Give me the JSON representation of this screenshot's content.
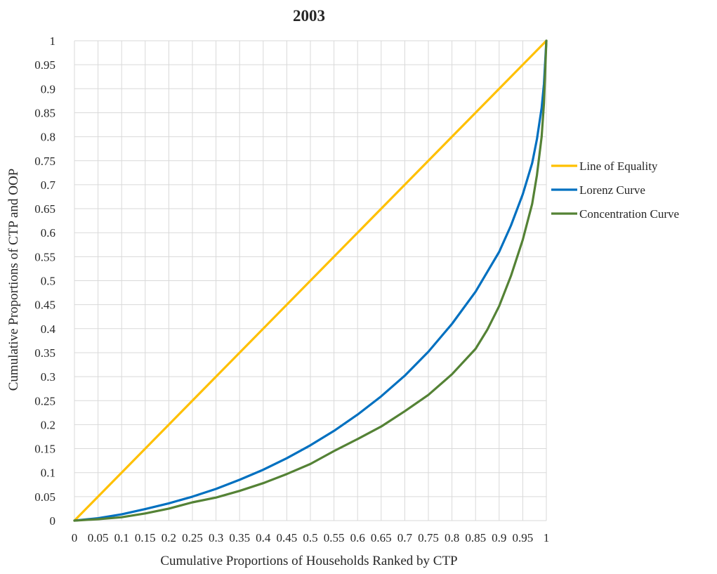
{
  "chart_data": {
    "type": "line",
    "title": "2003",
    "xlabel": "Cumulative Proportions of Households Ranked by CTP",
    "ylabel": "Cumulative Proportions of CTP and OOP",
    "xlim": [
      0,
      1
    ],
    "ylim": [
      0,
      1
    ],
    "grid": true,
    "legend_position": "right",
    "x_tick_labels": [
      "0",
      "0.05",
      "0.1",
      "0.15",
      "0.2",
      "0.25",
      "0.3",
      "0.35",
      "0.4",
      "0.45",
      "0.5",
      "0.55",
      "0.6",
      "0.65",
      "0.7",
      "0.75",
      "0.8",
      "0.85",
      "0.9",
      "0.95",
      "1"
    ],
    "y_tick_labels": [
      "0",
      "0.05",
      "0.1",
      "0.15",
      "0.2",
      "0.25",
      "0.3",
      "0.35",
      "0.4",
      "0.45",
      "0.5",
      "0.55",
      "0.6",
      "0.65",
      "0.7",
      "0.75",
      "0.8",
      "0.85",
      "0.9",
      "0.95",
      "1"
    ],
    "series": [
      {
        "name": "Line of Equality",
        "color": "#FFC000",
        "x": [
          0,
          1
        ],
        "y": [
          0,
          1
        ]
      },
      {
        "name": "Lorenz Curve",
        "color": "#0070C0",
        "x": [
          0,
          0.05,
          0.1,
          0.15,
          0.2,
          0.25,
          0.3,
          0.35,
          0.4,
          0.45,
          0.5,
          0.55,
          0.6,
          0.65,
          0.7,
          0.75,
          0.8,
          0.85,
          0.9,
          0.925,
          0.95,
          0.97,
          0.98,
          0.99,
          0.995,
          1
        ],
        "y": [
          0,
          0.005,
          0.013,
          0.024,
          0.036,
          0.05,
          0.066,
          0.085,
          0.106,
          0.13,
          0.157,
          0.187,
          0.221,
          0.259,
          0.302,
          0.352,
          0.41,
          0.477,
          0.56,
          0.615,
          0.68,
          0.745,
          0.795,
          0.86,
          0.91,
          1
        ]
      },
      {
        "name": "Concentration Curve",
        "color": "#548235",
        "x": [
          0,
          0.05,
          0.1,
          0.15,
          0.2,
          0.25,
          0.3,
          0.35,
          0.4,
          0.45,
          0.5,
          0.55,
          0.6,
          0.65,
          0.7,
          0.75,
          0.8,
          0.85,
          0.875,
          0.9,
          0.925,
          0.95,
          0.97,
          0.98,
          0.99,
          0.995,
          1
        ],
        "y": [
          0,
          0.003,
          0.007,
          0.015,
          0.025,
          0.038,
          0.048,
          0.062,
          0.078,
          0.097,
          0.118,
          0.145,
          0.17,
          0.196,
          0.228,
          0.262,
          0.305,
          0.358,
          0.398,
          0.447,
          0.51,
          0.585,
          0.66,
          0.72,
          0.8,
          0.87,
          1
        ]
      }
    ]
  }
}
